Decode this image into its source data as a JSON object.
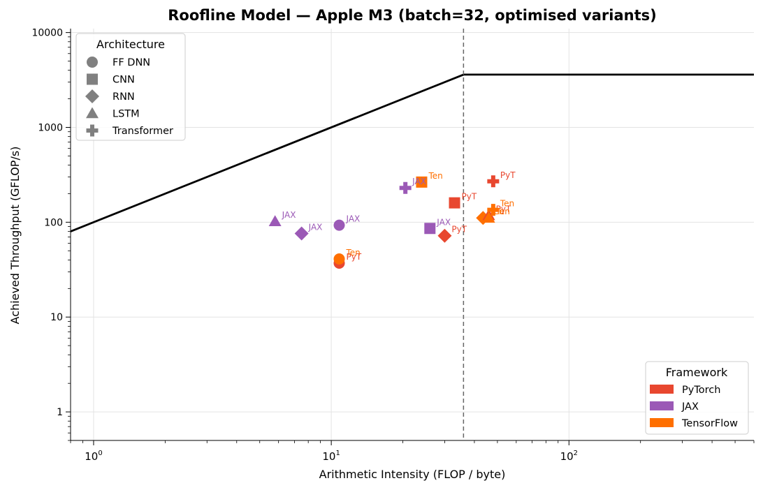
{
  "chart_data": {
    "type": "scatter",
    "title": "Roofline Model — Apple M3  (batch=32, optimised variants)",
    "xlabel": "Arithmetic Intensity (FLOP / byte)",
    "ylabel": "Achieved Throughput (GFLOP/s)",
    "x_scale": "log",
    "y_scale": "log",
    "xlim": [
      0.8,
      600
    ],
    "ylim": [
      0.5,
      11000
    ],
    "grid": true,
    "x_ticks": [
      {
        "value": 1,
        "base": "10",
        "exp": "0"
      },
      {
        "value": 10,
        "base": "10",
        "exp": "1"
      },
      {
        "value": 100,
        "base": "10",
        "exp": "2"
      }
    ],
    "y_ticks": [
      {
        "value": 1,
        "label": "1"
      },
      {
        "value": 10,
        "label": "10"
      },
      {
        "value": 100,
        "label": "100"
      },
      {
        "value": 1000,
        "label": "1000"
      },
      {
        "value": 10000,
        "label": "10000"
      }
    ],
    "roofline": {
      "ridge_intensity": 36,
      "peak_throughput": 3600,
      "bandwidth_slope": 100
    },
    "architecture_legend": {
      "title": "Architecture",
      "placement": "top-left",
      "items": [
        {
          "label": "FF DNN",
          "marker": "circle"
        },
        {
          "label": "CNN",
          "marker": "square"
        },
        {
          "label": "RNN",
          "marker": "diamond"
        },
        {
          "label": "LSTM",
          "marker": "triangle"
        },
        {
          "label": "Transformer",
          "marker": "plus"
        }
      ]
    },
    "framework_legend": {
      "title": "Framework",
      "placement": "lower-right",
      "items": [
        {
          "label": "PyTorch",
          "color": "#e8472f"
        },
        {
          "label": "JAX",
          "color": "#9b59b6"
        },
        {
          "label": "TensorFlow",
          "color": "#ff6f00"
        }
      ]
    },
    "points": [
      {
        "framework": "PyTorch",
        "arch": "FF DNN",
        "x": 10.8,
        "y": 37,
        "label": "PyT"
      },
      {
        "framework": "TensorFlow",
        "arch": "FF DNN",
        "x": 10.8,
        "y": 41,
        "label": "Ten"
      },
      {
        "framework": "JAX",
        "arch": "FF DNN",
        "x": 10.8,
        "y": 93,
        "label": "JAX"
      },
      {
        "framework": "PyTorch",
        "arch": "CNN",
        "x": 33,
        "y": 160,
        "label": "PyT"
      },
      {
        "framework": "JAX",
        "arch": "CNN",
        "x": 26,
        "y": 86,
        "label": "JAX"
      },
      {
        "framework": "TensorFlow",
        "arch": "CNN",
        "x": 24,
        "y": 265,
        "label": "Ten"
      },
      {
        "framework": "PyTorch",
        "arch": "RNN",
        "x": 30,
        "y": 72,
        "label": "PyT"
      },
      {
        "framework": "JAX",
        "arch": "RNN",
        "x": 7.5,
        "y": 76,
        "label": "JAX"
      },
      {
        "framework": "TensorFlow",
        "arch": "RNN",
        "x": 43.5,
        "y": 111,
        "label": "Ten"
      },
      {
        "framework": "PyTorch",
        "arch": "LSTM",
        "x": 46,
        "y": 118,
        "label": "PyT"
      },
      {
        "framework": "JAX",
        "arch": "LSTM",
        "x": 5.8,
        "y": 102,
        "label": "JAX"
      },
      {
        "framework": "TensorFlow",
        "arch": "LSTM",
        "x": 46,
        "y": 111,
        "label": "Ten"
      },
      {
        "framework": "PyTorch",
        "arch": "Transformer",
        "x": 48,
        "y": 270,
        "label": "PyT"
      },
      {
        "framework": "JAX",
        "arch": "Transformer",
        "x": 20.5,
        "y": 230,
        "label": "JAX"
      },
      {
        "framework": "TensorFlow",
        "arch": "Transformer",
        "x": 48,
        "y": 135,
        "label": "Ten"
      }
    ]
  }
}
